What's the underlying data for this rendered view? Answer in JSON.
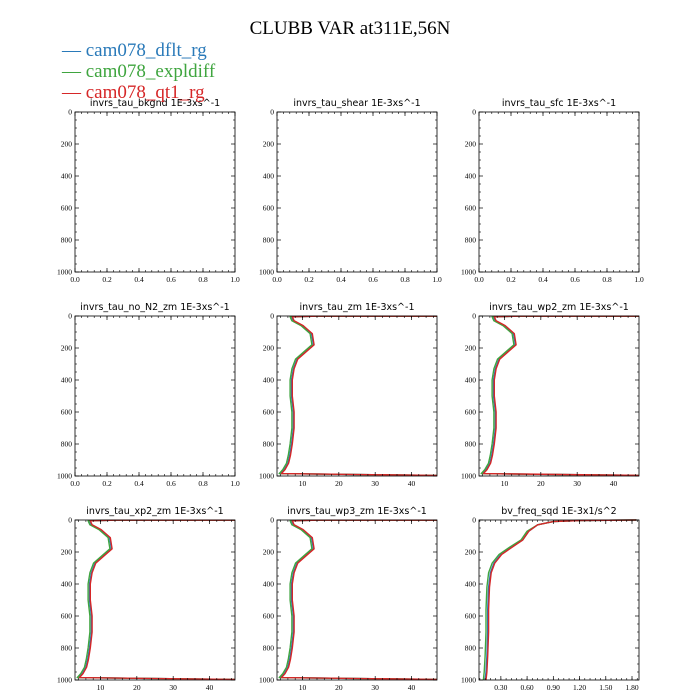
{
  "figure": {
    "title": "CLUBB VAR at311E,56N"
  },
  "legend": [
    {
      "label": "cam078_dflt_rg",
      "color": "#2a7ab9"
    },
    {
      "label": "cam078_expldiff",
      "color": "#3fa53f"
    },
    {
      "label": "cam078_qt1_rg",
      "color": "#d62728"
    }
  ],
  "chart_data": [
    {
      "type": "line",
      "title": "invrs_tau_bkgnd  1E-3xs^-1",
      "xticks": [
        "0.0",
        "0.2",
        "0.4",
        "0.6",
        "0.8",
        "1.0"
      ],
      "yticks": [
        "0",
        "200",
        "400",
        "600",
        "800",
        "1000"
      ],
      "xlim": [
        0,
        1
      ],
      "ylim": [
        1000,
        0
      ],
      "series": []
    },
    {
      "type": "line",
      "title": "invrs_tau_shear  1E-3xs^-1",
      "xticks": [
        "0.0",
        "0.2",
        "0.4",
        "0.6",
        "0.8",
        "1.0"
      ],
      "yticks": [
        "0",
        "200",
        "400",
        "600",
        "800",
        "1000"
      ],
      "xlim": [
        0,
        1
      ],
      "ylim": [
        1000,
        0
      ],
      "series": []
    },
    {
      "type": "line",
      "title": "invrs_tau_sfc  1E-3xs^-1",
      "xticks": [
        "0.0",
        "0.2",
        "0.4",
        "0.6",
        "0.8",
        "1.0"
      ],
      "yticks": [
        "0",
        "200",
        "400",
        "600",
        "800",
        "1000"
      ],
      "xlim": [
        0,
        1
      ],
      "ylim": [
        1000,
        0
      ],
      "series": []
    },
    {
      "type": "line",
      "title": "invrs_tau_no_N2_zm  1E-3xs^-1",
      "xticks": [
        "0.0",
        "0.2",
        "0.4",
        "0.6",
        "0.8",
        "1.0"
      ],
      "yticks": [
        "0",
        "200",
        "400",
        "600",
        "800",
        "1000"
      ],
      "xlim": [
        0,
        1
      ],
      "ylim": [
        1000,
        0
      ],
      "series": []
    },
    {
      "type": "line",
      "title": "invrs_tau_zm  1E-3xs^-1",
      "xticks": [
        "10",
        "20",
        "30",
        "40"
      ],
      "yticks": [
        "0",
        "200",
        "400",
        "600",
        "800",
        "1000"
      ],
      "xlim": [
        3,
        47
      ],
      "ylim": [
        1000,
        0
      ],
      "series": [
        {
          "x": [
            47,
            14,
            7,
            7.5,
            10,
            12.5,
            13,
            11,
            8.5,
            7.5,
            7,
            7,
            7.5,
            7.5,
            7,
            6.5,
            6,
            5,
            4,
            47
          ],
          "y": [
            1,
            1,
            5,
            30,
            60,
            110,
            180,
            220,
            270,
            330,
            400,
            500,
            600,
            700,
            800,
            870,
            920,
            960,
            985,
            996
          ]
        },
        {
          "x": [
            47,
            14,
            6.6,
            7.1,
            9.6,
            12.1,
            12.6,
            10.6,
            8.1,
            7.1,
            6.6,
            6.6,
            7.1,
            7.1,
            6.6,
            6.1,
            5.6,
            4.6,
            3.6,
            47
          ],
          "y": [
            1,
            1,
            5,
            30,
            60,
            110,
            180,
            220,
            270,
            330,
            400,
            500,
            600,
            700,
            800,
            870,
            920,
            960,
            985,
            996
          ]
        },
        {
          "x": [
            47,
            14,
            7.2,
            7.7,
            10.2,
            12.7,
            13.2,
            11.2,
            8.7,
            7.7,
            7.2,
            7.2,
            7.7,
            7.7,
            7.2,
            6.7,
            6.2,
            5.2,
            4.2,
            47
          ],
          "y": [
            1,
            1,
            5,
            30,
            60,
            110,
            180,
            220,
            270,
            330,
            400,
            500,
            600,
            700,
            800,
            870,
            920,
            960,
            985,
            996
          ]
        }
      ]
    },
    {
      "type": "line",
      "title": "invrs_tau_wp2_zm  1E-3xs^-1",
      "xticks": [
        "10",
        "20",
        "30",
        "40"
      ],
      "yticks": [
        "0",
        "200",
        "400",
        "600",
        "800",
        "1000"
      ],
      "xlim": [
        3,
        47
      ],
      "ylim": [
        1000,
        0
      ],
      "series": [
        {
          "x": [
            47,
            14,
            7,
            7.5,
            10,
            12.5,
            13,
            11,
            8.5,
            7.5,
            7,
            7,
            7.5,
            7.5,
            7,
            6.5,
            6,
            5,
            4,
            47
          ],
          "y": [
            1,
            1,
            5,
            30,
            60,
            110,
            180,
            220,
            270,
            330,
            400,
            500,
            600,
            700,
            800,
            870,
            920,
            960,
            985,
            996
          ]
        },
        {
          "x": [
            47,
            14,
            6.6,
            7.1,
            9.6,
            12.1,
            12.6,
            10.6,
            8.1,
            7.1,
            6.6,
            6.6,
            7.1,
            7.1,
            6.6,
            6.1,
            5.6,
            4.6,
            3.6,
            47
          ],
          "y": [
            1,
            1,
            5,
            30,
            60,
            110,
            180,
            220,
            270,
            330,
            400,
            500,
            600,
            700,
            800,
            870,
            920,
            960,
            985,
            996
          ]
        },
        {
          "x": [
            47,
            14,
            7.2,
            7.7,
            10.2,
            12.7,
            13.2,
            11.2,
            8.7,
            7.7,
            7.2,
            7.2,
            7.7,
            7.7,
            7.2,
            6.7,
            6.2,
            5.2,
            4.2,
            47
          ],
          "y": [
            1,
            1,
            5,
            30,
            60,
            110,
            180,
            220,
            270,
            330,
            400,
            500,
            600,
            700,
            800,
            870,
            920,
            960,
            985,
            996
          ]
        }
      ]
    },
    {
      "type": "line",
      "title": "invrs_tau_xp2_zm  1E-3xs^-1",
      "xticks": [
        "10",
        "20",
        "30",
        "40"
      ],
      "yticks": [
        "0",
        "200",
        "400",
        "600",
        "800",
        "1000"
      ],
      "xlim": [
        3,
        47
      ],
      "ylim": [
        1000,
        0
      ],
      "series": [
        {
          "x": [
            47,
            14,
            7,
            7.5,
            10,
            12.5,
            13,
            11,
            8.5,
            7.5,
            7,
            7,
            7.5,
            7.5,
            7,
            6.5,
            6,
            5,
            4,
            47
          ],
          "y": [
            1,
            1,
            5,
            30,
            60,
            110,
            180,
            220,
            270,
            330,
            400,
            500,
            600,
            700,
            800,
            870,
            920,
            960,
            985,
            996
          ]
        },
        {
          "x": [
            47,
            14,
            6.6,
            7.1,
            9.6,
            12.1,
            12.6,
            10.6,
            8.1,
            7.1,
            6.6,
            6.6,
            7.1,
            7.1,
            6.6,
            6.1,
            5.6,
            4.6,
            3.6,
            47
          ],
          "y": [
            1,
            1,
            5,
            30,
            60,
            110,
            180,
            220,
            270,
            330,
            400,
            500,
            600,
            700,
            800,
            870,
            920,
            960,
            985,
            996
          ]
        },
        {
          "x": [
            47,
            14,
            7.2,
            7.7,
            10.2,
            12.7,
            13.2,
            11.2,
            8.7,
            7.7,
            7.2,
            7.2,
            7.7,
            7.7,
            7.2,
            6.7,
            6.2,
            5.2,
            4.2,
            47
          ],
          "y": [
            1,
            1,
            5,
            30,
            60,
            110,
            180,
            220,
            270,
            330,
            400,
            500,
            600,
            700,
            800,
            870,
            920,
            960,
            985,
            996
          ]
        }
      ]
    },
    {
      "type": "line",
      "title": "invrs_tau_wp3_zm  1E-3xs^-1",
      "xticks": [
        "10",
        "20",
        "30",
        "40"
      ],
      "yticks": [
        "0",
        "200",
        "400",
        "600",
        "800",
        "1000"
      ],
      "xlim": [
        3,
        47
      ],
      "ylim": [
        1000,
        0
      ],
      "series": [
        {
          "x": [
            47,
            14,
            7,
            7.5,
            10,
            12.5,
            13,
            11,
            8.5,
            7.5,
            7,
            7,
            7.5,
            7.5,
            7,
            6.5,
            6,
            5,
            4,
            47
          ],
          "y": [
            1,
            1,
            5,
            30,
            60,
            110,
            180,
            220,
            270,
            330,
            400,
            500,
            600,
            700,
            800,
            870,
            920,
            960,
            985,
            996
          ]
        },
        {
          "x": [
            47,
            14,
            6.6,
            7.1,
            9.6,
            12.1,
            12.6,
            10.6,
            8.1,
            7.1,
            6.6,
            6.6,
            7.1,
            7.1,
            6.6,
            6.1,
            5.6,
            4.6,
            3.6,
            47
          ],
          "y": [
            1,
            1,
            5,
            30,
            60,
            110,
            180,
            220,
            270,
            330,
            400,
            500,
            600,
            700,
            800,
            870,
            920,
            960,
            985,
            996
          ]
        },
        {
          "x": [
            47,
            14,
            7.2,
            7.7,
            10.2,
            12.7,
            13.2,
            11.2,
            8.7,
            7.7,
            7.2,
            7.2,
            7.7,
            7.7,
            7.2,
            6.7,
            6.2,
            5.2,
            4.2,
            47
          ],
          "y": [
            1,
            1,
            5,
            30,
            60,
            110,
            180,
            220,
            270,
            330,
            400,
            500,
            600,
            700,
            800,
            870,
            920,
            960,
            985,
            996
          ]
        }
      ]
    },
    {
      "type": "line",
      "title": "bv_freq_sqd  1E-3x1/s^2",
      "xticks": [
        "0.30",
        "0.60",
        "0.90",
        "1.20",
        "1.50",
        "1.80"
      ],
      "yticks": [
        "0",
        "200",
        "400",
        "600",
        "800",
        "1000"
      ],
      "xlim": [
        0.05,
        1.88
      ],
      "ylim": [
        1000,
        0
      ],
      "series": [
        {
          "x": [
            1.85,
            1.2,
            0.9,
            0.72,
            0.62,
            0.55,
            0.42,
            0.3,
            0.22,
            0.18,
            0.16,
            0.15,
            0.15,
            0.14,
            0.13,
            0.12
          ],
          "y": [
            0,
            3,
            10,
            30,
            70,
            125,
            170,
            215,
            270,
            330,
            420,
            560,
            700,
            850,
            950,
            1000
          ]
        },
        {
          "x": [
            1.85,
            1.2,
            0.9,
            0.72,
            0.6,
            0.53,
            0.4,
            0.28,
            0.2,
            0.16,
            0.14,
            0.13,
            0.13,
            0.12,
            0.11,
            0.1
          ],
          "y": [
            0,
            3,
            10,
            30,
            70,
            125,
            170,
            215,
            270,
            330,
            420,
            560,
            700,
            850,
            950,
            1000
          ]
        },
        {
          "x": [
            1.85,
            1.2,
            0.9,
            0.72,
            0.62,
            0.55,
            0.43,
            0.31,
            0.23,
            0.19,
            0.17,
            0.16,
            0.16,
            0.15,
            0.14,
            0.13
          ],
          "y": [
            0,
            3,
            10,
            30,
            70,
            125,
            170,
            215,
            270,
            330,
            420,
            560,
            700,
            850,
            950,
            1000
          ]
        }
      ]
    }
  ]
}
